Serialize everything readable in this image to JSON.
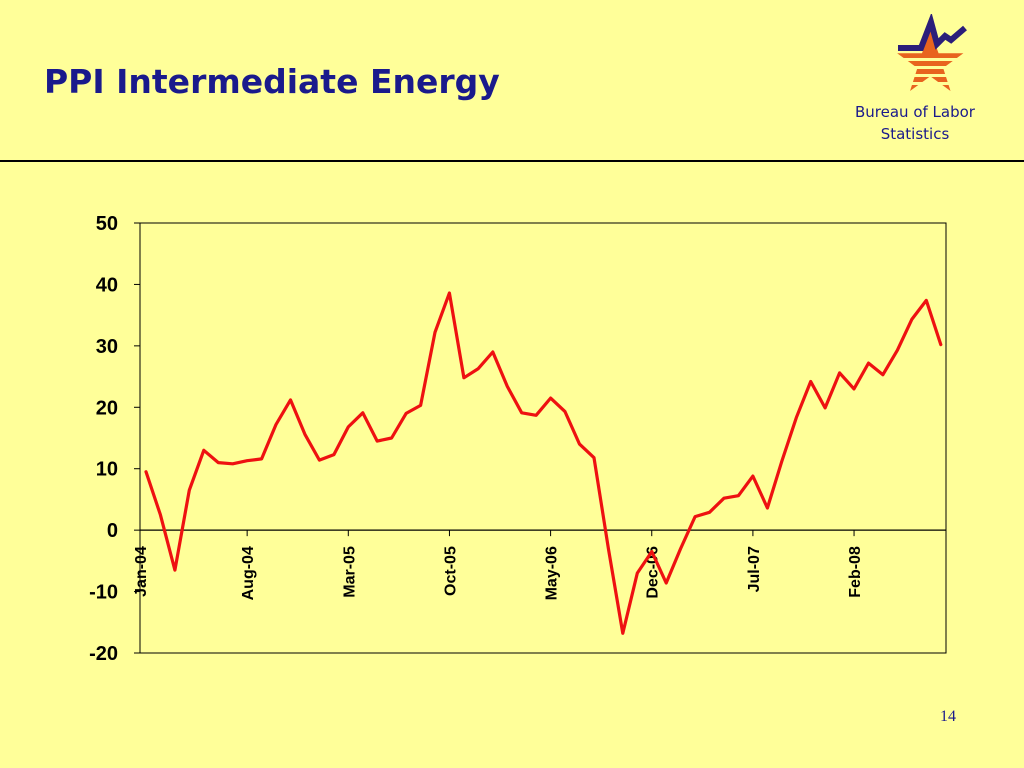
{
  "slide": {
    "title": "PPI Intermediate Energy",
    "page_number": "14"
  },
  "logo": {
    "org_line1": "Bureau of Labor",
    "org_line2": "Statistics",
    "icon": "bls-star-chart-logo",
    "colors": {
      "star": "#E8641E",
      "stripes": "#FFFF99",
      "line": "#2B1E7A"
    }
  },
  "colors": {
    "background": "#FFFF99",
    "title": "#1A1A8C",
    "series": "#EE1111",
    "axis": "#000000"
  },
  "chart_data": {
    "type": "line",
    "title": "",
    "xlabel": "",
    "ylabel": "",
    "ylim": [
      -20,
      50
    ],
    "y_ticks": [
      "50",
      "40",
      "30",
      "20",
      "10",
      "0",
      "-10",
      "-20"
    ],
    "x_ticks": [
      {
        "label": "Jan-04",
        "index": 0
      },
      {
        "label": "Aug-04",
        "index": 7
      },
      {
        "label": "Mar-05",
        "index": 14
      },
      {
        "label": "Oct-05",
        "index": 21
      },
      {
        "label": "May-06",
        "index": 28
      },
      {
        "label": "Dec-06",
        "index": 35
      },
      {
        "label": "Jul-07",
        "index": 42
      },
      {
        "label": "Feb-08",
        "index": 49
      }
    ],
    "grid": false,
    "legend": "none",
    "series": [
      {
        "values": [
          9.5,
          2.5,
          -6.5,
          6.5,
          13.0,
          11.0,
          10.8,
          11.3,
          11.6,
          17.2,
          21.2,
          15.6,
          11.4,
          12.3,
          16.8,
          19.1,
          14.5,
          15.0,
          19.0,
          20.3,
          32.2,
          38.6,
          24.8,
          26.3,
          29.0,
          23.4,
          19.1,
          18.7,
          21.5,
          19.3,
          14.0,
          11.8,
          -3.0,
          -16.8,
          -7.0,
          -3.5,
          -8.6,
          -3.0,
          2.2,
          2.9,
          5.2,
          5.6,
          8.8,
          3.6,
          11.2,
          18.3,
          24.2,
          19.9,
          25.6,
          23.0,
          27.2,
          25.3,
          29.3,
          34.3,
          37.4,
          30.2
        ]
      }
    ]
  }
}
